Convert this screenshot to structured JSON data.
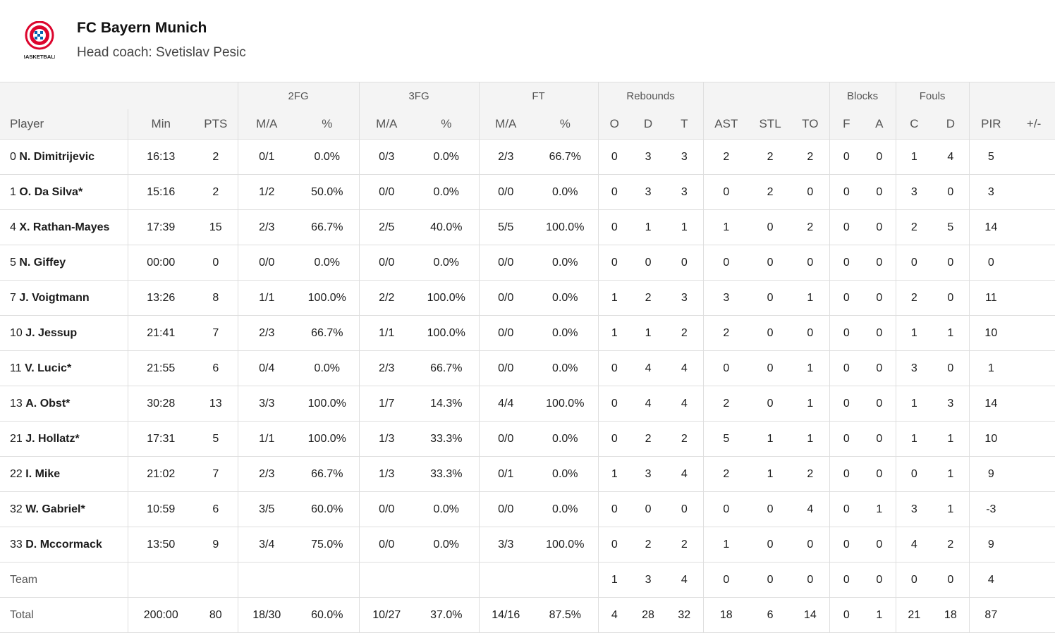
{
  "team": {
    "name": "FC Bayern Munich",
    "coach": "Head coach: Svetislav Pesic",
    "logo_text": "BASKETBALL",
    "logo_colors": {
      "red": "#dc052d",
      "blue": "#0066b2"
    }
  },
  "table": {
    "groups": {
      "fg2": "2FG",
      "fg3": "3FG",
      "ft": "FT",
      "reb": "Rebounds",
      "blocks": "Blocks",
      "fouls": "Fouls"
    },
    "columns": [
      "Player",
      "Min",
      "PTS",
      "M/A",
      "%",
      "M/A",
      "%",
      "M/A",
      "%",
      "O",
      "D",
      "T",
      "AST",
      "STL",
      "TO",
      "F",
      "A",
      "C",
      "D",
      "PIR",
      "+/-"
    ],
    "players": [
      {
        "num": "0",
        "name": "N. Dimitrijevic",
        "stats": [
          "16:13",
          "2",
          "0/1",
          "0.0%",
          "0/3",
          "0.0%",
          "2/3",
          "66.7%",
          "0",
          "3",
          "3",
          "2",
          "2",
          "2",
          "0",
          "0",
          "1",
          "4",
          "5",
          ""
        ]
      },
      {
        "num": "1",
        "name": "O. Da Silva*",
        "stats": [
          "15:16",
          "2",
          "1/2",
          "50.0%",
          "0/0",
          "0.0%",
          "0/0",
          "0.0%",
          "0",
          "3",
          "3",
          "0",
          "2",
          "0",
          "0",
          "0",
          "3",
          "0",
          "3",
          ""
        ]
      },
      {
        "num": "4",
        "name": "X. Rathan-Mayes",
        "stats": [
          "17:39",
          "15",
          "2/3",
          "66.7%",
          "2/5",
          "40.0%",
          "5/5",
          "100.0%",
          "0",
          "1",
          "1",
          "1",
          "0",
          "2",
          "0",
          "0",
          "2",
          "5",
          "14",
          ""
        ]
      },
      {
        "num": "5",
        "name": "N. Giffey",
        "stats": [
          "00:00",
          "0",
          "0/0",
          "0.0%",
          "0/0",
          "0.0%",
          "0/0",
          "0.0%",
          "0",
          "0",
          "0",
          "0",
          "0",
          "0",
          "0",
          "0",
          "0",
          "0",
          "0",
          ""
        ]
      },
      {
        "num": "7",
        "name": "J. Voigtmann",
        "stats": [
          "13:26",
          "8",
          "1/1",
          "100.0%",
          "2/2",
          "100.0%",
          "0/0",
          "0.0%",
          "1",
          "2",
          "3",
          "3",
          "0",
          "1",
          "0",
          "0",
          "2",
          "0",
          "11",
          ""
        ]
      },
      {
        "num": "10",
        "name": "J. Jessup",
        "stats": [
          "21:41",
          "7",
          "2/3",
          "66.7%",
          "1/1",
          "100.0%",
          "0/0",
          "0.0%",
          "1",
          "1",
          "2",
          "2",
          "0",
          "0",
          "0",
          "0",
          "1",
          "1",
          "10",
          ""
        ]
      },
      {
        "num": "11",
        "name": "V. Lucic*",
        "stats": [
          "21:55",
          "6",
          "0/4",
          "0.0%",
          "2/3",
          "66.7%",
          "0/0",
          "0.0%",
          "0",
          "4",
          "4",
          "0",
          "0",
          "1",
          "0",
          "0",
          "3",
          "0",
          "1",
          ""
        ]
      },
      {
        "num": "13",
        "name": "A. Obst*",
        "stats": [
          "30:28",
          "13",
          "3/3",
          "100.0%",
          "1/7",
          "14.3%",
          "4/4",
          "100.0%",
          "0",
          "4",
          "4",
          "2",
          "0",
          "1",
          "0",
          "0",
          "1",
          "3",
          "14",
          ""
        ]
      },
      {
        "num": "21",
        "name": "J. Hollatz*",
        "stats": [
          "17:31",
          "5",
          "1/1",
          "100.0%",
          "1/3",
          "33.3%",
          "0/0",
          "0.0%",
          "0",
          "2",
          "2",
          "5",
          "1",
          "1",
          "0",
          "0",
          "1",
          "1",
          "10",
          ""
        ]
      },
      {
        "num": "22",
        "name": "I. Mike",
        "stats": [
          "21:02",
          "7",
          "2/3",
          "66.7%",
          "1/3",
          "33.3%",
          "0/1",
          "0.0%",
          "1",
          "3",
          "4",
          "2",
          "1",
          "2",
          "0",
          "0",
          "0",
          "1",
          "9",
          ""
        ]
      },
      {
        "num": "32",
        "name": "W. Gabriel*",
        "stats": [
          "10:59",
          "6",
          "3/5",
          "60.0%",
          "0/0",
          "0.0%",
          "0/0",
          "0.0%",
          "0",
          "0",
          "0",
          "0",
          "0",
          "4",
          "0",
          "1",
          "3",
          "1",
          "-3",
          ""
        ]
      },
      {
        "num": "33",
        "name": "D. Mccormack",
        "stats": [
          "13:50",
          "9",
          "3/4",
          "75.0%",
          "0/0",
          "0.0%",
          "3/3",
          "100.0%",
          "0",
          "2",
          "2",
          "1",
          "0",
          "0",
          "0",
          "0",
          "4",
          "2",
          "9",
          ""
        ]
      }
    ],
    "team_row": {
      "label": "Team",
      "stats": [
        "",
        "",
        "",
        "",
        "",
        "",
        "",
        "",
        "1",
        "3",
        "4",
        "0",
        "0",
        "0",
        "0",
        "0",
        "0",
        "0",
        "4",
        ""
      ]
    },
    "total_row": {
      "label": "Total",
      "stats": [
        "200:00",
        "80",
        "18/30",
        "60.0%",
        "10/27",
        "37.0%",
        "14/16",
        "87.5%",
        "4",
        "28",
        "32",
        "18",
        "6",
        "14",
        "0",
        "1",
        "21",
        "18",
        "87",
        ""
      ]
    }
  }
}
